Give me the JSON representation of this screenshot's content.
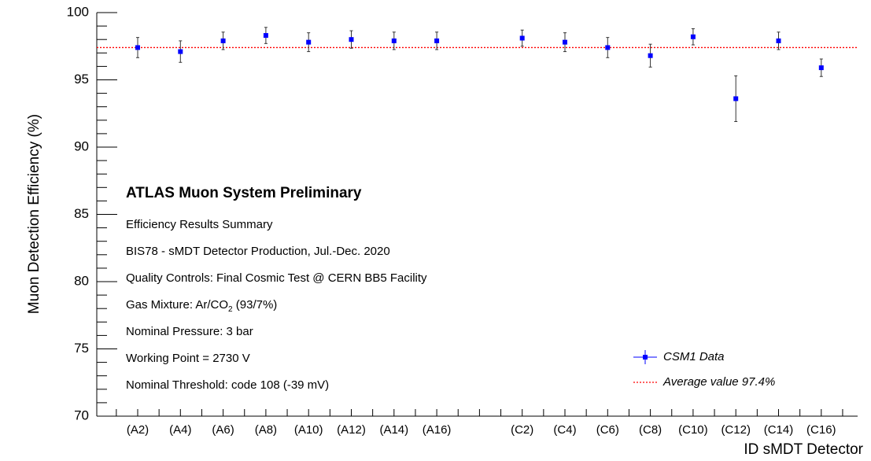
{
  "chart_data": {
    "type": "scatter",
    "title": "ATLAS Muon System Preliminary",
    "annotations": [
      "Efficiency Results Summary",
      "BIS78 - sMDT Detector Production, Jul.-Dec. 2020",
      "Quality Controls: Final Cosmic Test @ CERN BB5 Facility",
      {
        "text": "Gas Mixture: Ar/CO",
        "subscript": "2",
        "suffix": " (93/7%)"
      },
      "Nominal Pressure: 3 bar",
      "Working Point = 2730 V",
      "Nominal Threshold: code 108 (-39 mV)"
    ],
    "x_label": "ID sMDT Detector",
    "y_label": "Muon Detection Efficiency (%)",
    "categories": [
      "(A2)",
      "(A4)",
      "(A6)",
      "(A8)",
      "(A10)",
      "(A12)",
      "(A14)",
      "(A16)",
      null,
      "(C2)",
      "(C4)",
      "(C6)",
      "(C8)",
      "(C10)",
      "(C12)",
      "(C14)",
      "(C16)"
    ],
    "series": [
      {
        "name": "CSM1 Data",
        "color": "#0000ff",
        "values": [
          97.4,
          97.1,
          97.9,
          98.3,
          97.8,
          98.0,
          97.9,
          97.9,
          null,
          98.1,
          97.8,
          97.4,
          96.8,
          98.2,
          93.6,
          97.9,
          95.9
        ],
        "errors": [
          0.75,
          0.8,
          0.65,
          0.6,
          0.7,
          0.65,
          0.65,
          0.65,
          null,
          0.6,
          0.7,
          0.75,
          0.85,
          0.6,
          1.7,
          0.65,
          0.65
        ]
      }
    ],
    "reference_line": {
      "value": 97.4,
      "color": "#ff0000",
      "label": "Average value 97.4%"
    },
    "ylim": [
      70,
      100
    ],
    "yticks": [
      70,
      75,
      80,
      85,
      90,
      95,
      100
    ],
    "y_minor_per_major": 5,
    "legend": "lower right"
  }
}
